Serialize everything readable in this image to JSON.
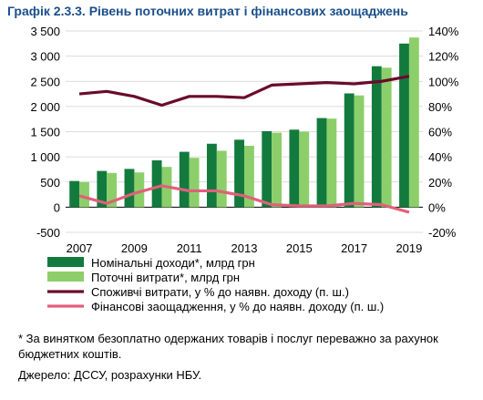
{
  "header": {
    "number": "Графік 2.3.3.",
    "title": "Рівень поточних витрат і фінансових заощаджень"
  },
  "footnote": "* За винятком безоплатно одержаних товарів і послуг переважно за рахунок бюджетних коштів.",
  "source": "Джерело: ДССУ, розрахунки НБУ.",
  "colors": {
    "nominal_income": "#137a3e",
    "current_expenses": "#8ccf6a",
    "consumer_spending": "#6a0a2c",
    "financial_savings": "#e0607a"
  },
  "chart_data": {
    "type": "bar",
    "x": [
      2007,
      2008,
      2009,
      2010,
      2011,
      2012,
      2013,
      2014,
      2015,
      2016,
      2017,
      2018,
      2019
    ],
    "x_tick_labels": [
      "2007",
      "2009",
      "2011",
      "2013",
      "2015",
      "2017",
      "2019"
    ],
    "y_left": {
      "min": -500,
      "max": 3500,
      "ticks": [
        -500,
        0,
        500,
        1000,
        1500,
        2000,
        2500,
        3000,
        3500
      ],
      "tick_labels": [
        "-500",
        "0",
        "500",
        "1 000",
        "1 500",
        "2 000",
        "2 500",
        "3 000",
        "3 500"
      ]
    },
    "y_right": {
      "min": -20,
      "max": 140,
      "ticks": [
        -20,
        0,
        20,
        40,
        60,
        80,
        100,
        120,
        140
      ],
      "tick_labels": [
        "-20%",
        "0%",
        "20%",
        "40%",
        "60%",
        "80%",
        "100%",
        "120%",
        "140%"
      ]
    },
    "series": [
      {
        "name": "Номінальні доходи*, млрд грн",
        "kind": "bar",
        "axis": "left",
        "values": [
          520,
          720,
          760,
          930,
          1100,
          1260,
          1340,
          1510,
          1540,
          1770,
          2260,
          2800,
          3250
        ]
      },
      {
        "name": "Поточні витрати*, млрд грн",
        "kind": "bar",
        "axis": "left",
        "values": [
          500,
          680,
          690,
          800,
          980,
          1120,
          1220,
          1480,
          1500,
          1760,
          2220,
          2770,
          3370
        ]
      },
      {
        "name": "Споживчі витрати, у % до наявн. доходу (п. ш.)",
        "kind": "line",
        "axis": "right",
        "values": [
          90,
          92,
          88,
          81,
          88,
          88,
          87,
          97,
          98,
          99,
          98,
          100,
          104
        ]
      },
      {
        "name": "Фінансові заощадження, у % до наявн. доходу (п. ш.)",
        "kind": "line",
        "axis": "right",
        "values": [
          9,
          3,
          11,
          17,
          13,
          13,
          9,
          2,
          1,
          1,
          3,
          2,
          -4
        ]
      }
    ],
    "grid": true,
    "legend_position": "bottom"
  }
}
